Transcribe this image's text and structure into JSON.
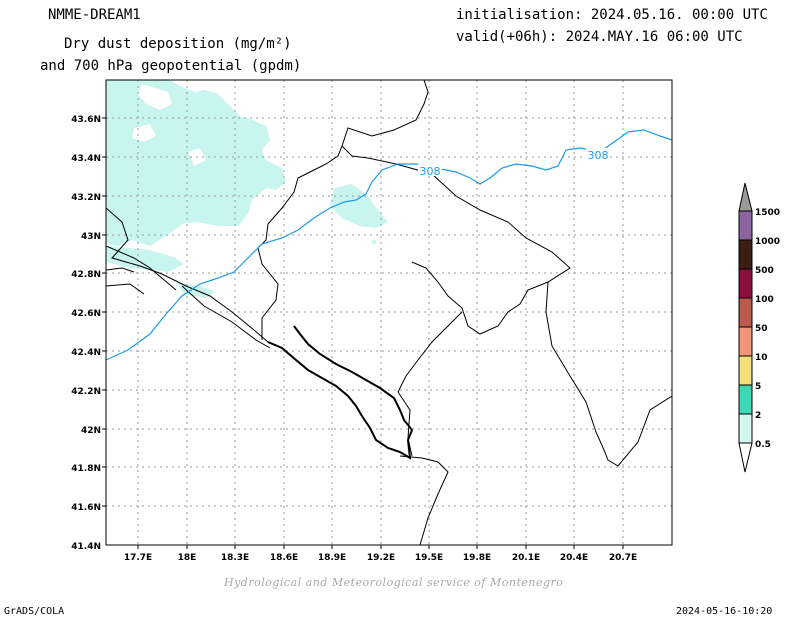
{
  "header": {
    "model_name": "NMME-DREAM1",
    "title_line1": "Dry dust deposition (mg/m²)",
    "title_line2": "and 700 hPa geopotential (gpdm)",
    "initialisation": "initialisation: 2024.05.16. 00:00 UTC",
    "valid": "valid(+06h): 2024.MAY.16 06:00 UTC"
  },
  "map": {
    "lat_ticks": [
      "43.6N",
      "43.4N",
      "43.2N",
      "43N",
      "42.8N",
      "42.6N",
      "42.4N",
      "42.2N",
      "42N",
      "41.8N",
      "41.6N",
      "41.4N"
    ],
    "lon_ticks": [
      "17.7E",
      "18E",
      "18.3E",
      "18.6E",
      "18.9E",
      "19.2E",
      "19.5E",
      "19.8E",
      "20.1E",
      "20.4E",
      "20.7E"
    ],
    "contour_labels": [
      "308",
      "308"
    ],
    "colors": {
      "dust_fill": "#c8f5ef",
      "contour": "#1e9be6",
      "border": "#000000",
      "grid": "#9a9a9a"
    }
  },
  "legend": {
    "labels": [
      "0.5",
      "2",
      "5",
      "10",
      "50",
      "100",
      "500",
      "1000",
      "1500"
    ],
    "colors": [
      "#d4f7f2",
      "#3ed9b4",
      "#f5e07a",
      "#f0967a",
      "#b95a4c",
      "#8c0e3c",
      "#3c1e14",
      "#8c64a0",
      "#9a9a9a"
    ]
  },
  "footer": {
    "credit": "Hydrological and Meteorological service of Montenegro",
    "software": "GrADS/COLA",
    "timestamp": "2024-05-16-10:20"
  }
}
